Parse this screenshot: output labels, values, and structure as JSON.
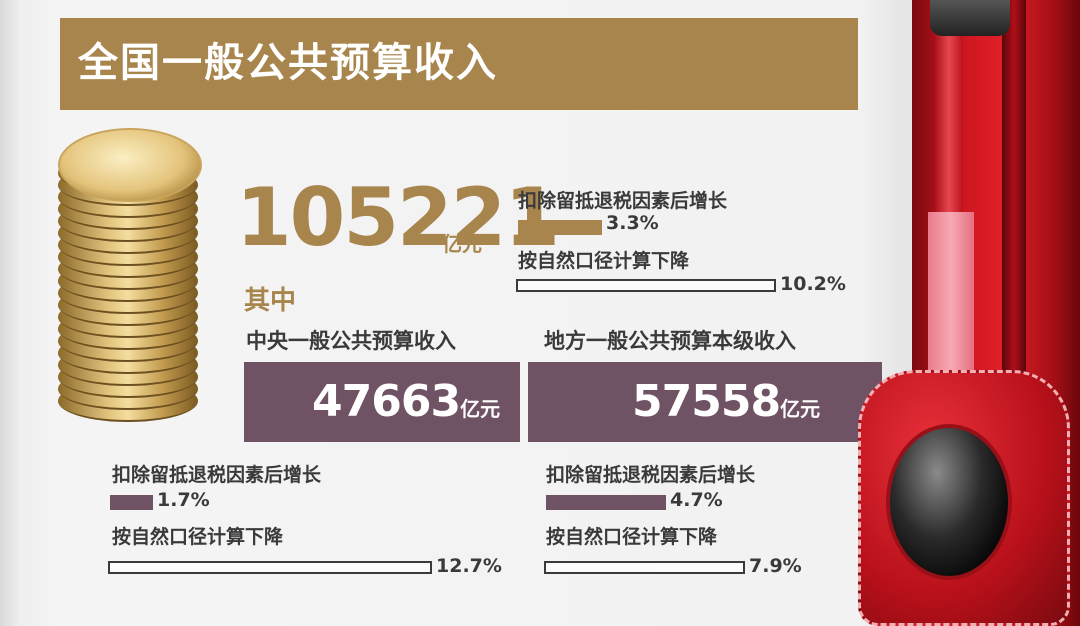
{
  "header": {
    "title": "全国一般公共预算收入"
  },
  "total": {
    "value": "105221",
    "unit": "亿元",
    "growth": {
      "label": "扣除留抵退税因素后增长",
      "value": "3.3%",
      "pct": 3.3
    },
    "decline": {
      "label": "按自然口径计算下降",
      "value": "10.2%",
      "pct": 10.2
    }
  },
  "of_which_label": "其中",
  "central": {
    "title": "中央一般公共预算收入",
    "value": "47663",
    "unit": "亿元",
    "growth": {
      "label": "扣除留抵退税因素后增长",
      "value": "1.7%",
      "pct": 1.7
    },
    "decline": {
      "label": "按自然口径计算下降",
      "value": "12.7%",
      "pct": 12.7
    }
  },
  "local": {
    "title": "地方一般公共预算本级收入",
    "value": "57558",
    "unit": "亿元",
    "growth": {
      "label": "扣除留抵退税因素后增长",
      "value": "4.7%",
      "pct": 4.7
    },
    "decline": {
      "label": "按自然口径计算下降",
      "value": "7.9%",
      "pct": 7.9
    }
  },
  "colors": {
    "gold": "#a8854c",
    "plum": "#6f5263",
    "text": "#3a3a3a"
  },
  "icons": [
    "coin-stack-icon",
    "red-purse-decoration"
  ]
}
